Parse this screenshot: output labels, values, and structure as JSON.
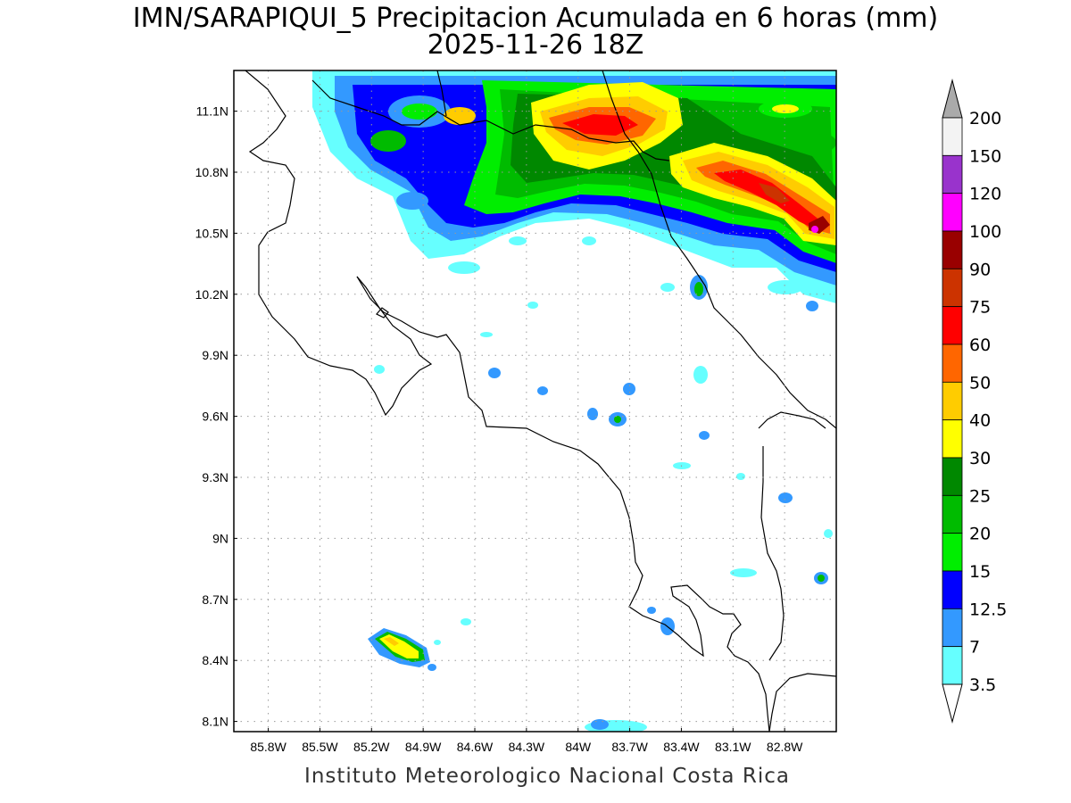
{
  "title_line1": "IMN/SARAPIQUI_5 Precipitacion Acumulada en 6 horas (mm)",
  "title_line2": "2025-11-26 18Z",
  "credit": "Instituto Meteorologico Nacional Costa Rica",
  "map": {
    "lon_range": [
      -86.0,
      -82.5
    ],
    "lat_range": [
      8.05,
      11.3
    ],
    "lon_ticks": [
      "85.8W",
      "85.5W",
      "85.2W",
      "84.9W",
      "84.6W",
      "84.3W",
      "84W",
      "83.7W",
      "83.4W",
      "83.1W",
      "82.8W"
    ],
    "lat_ticks": [
      "11.1N",
      "10.8N",
      "10.5N",
      "10.2N",
      "9.9N",
      "9.6N",
      "9.3N",
      "9N",
      "8.7N",
      "8.4N",
      "8.1N"
    ],
    "grid": true
  },
  "colorbar": {
    "labels": [
      "200",
      "150",
      "120",
      "100",
      "90",
      "75",
      "60",
      "50",
      "40",
      "30",
      "25",
      "20",
      "15",
      "12.5",
      "7",
      "3.5"
    ],
    "colors": [
      "#f3f3f3",
      "#9933cc",
      "#ff00ff",
      "#990000",
      "#cc3300",
      "#ff0000",
      "#ff6600",
      "#ffcc00",
      "#ffff00",
      "#008800",
      "#00bb00",
      "#00ee00",
      "#0000ff",
      "#3399ff",
      "#66ffff"
    ],
    "over_color": "#aaaaaa",
    "under_color": "#ffffff"
  }
}
